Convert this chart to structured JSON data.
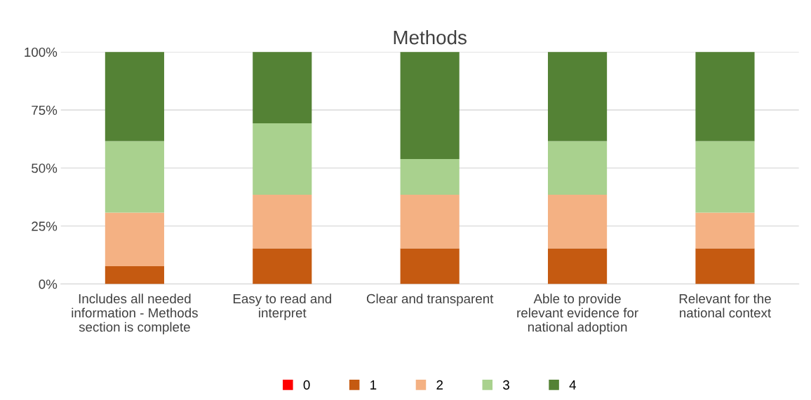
{
  "chart_data": {
    "type": "bar",
    "title": "Methods",
    "stacked": true,
    "categories": [
      "Includes all needed information - Methods section is complete",
      "Easy to read and interpret",
      "Clear and transparent",
      "Able to provide relevant evidence for national adoption",
      "Relevant for the national context"
    ],
    "series": [
      {
        "name": "0",
        "color": "#ff0000",
        "values": [
          0,
          0,
          0,
          0,
          0
        ]
      },
      {
        "name": "1",
        "color": "#c55a11",
        "values": [
          7.7,
          15.4,
          15.4,
          15.4,
          15.4
        ]
      },
      {
        "name": "2",
        "color": "#f4b183",
        "values": [
          23.1,
          23.1,
          23.1,
          23.1,
          15.4
        ]
      },
      {
        "name": "3",
        "color": "#a9d18e",
        "values": [
          30.8,
          30.8,
          15.4,
          23.1,
          30.8
        ]
      },
      {
        "name": "4",
        "color": "#548235",
        "values": [
          38.5,
          30.8,
          46.2,
          38.5,
          38.5
        ]
      }
    ],
    "ylim": [
      0,
      100
    ],
    "yticks": [
      {
        "value": 0,
        "label": "0%"
      },
      {
        "value": 25,
        "label": "25%"
      },
      {
        "value": 50,
        "label": "50%"
      },
      {
        "value": 75,
        "label": "75%"
      },
      {
        "value": 100,
        "label": "100%"
      }
    ],
    "grid": "y",
    "legend": "bottom"
  }
}
